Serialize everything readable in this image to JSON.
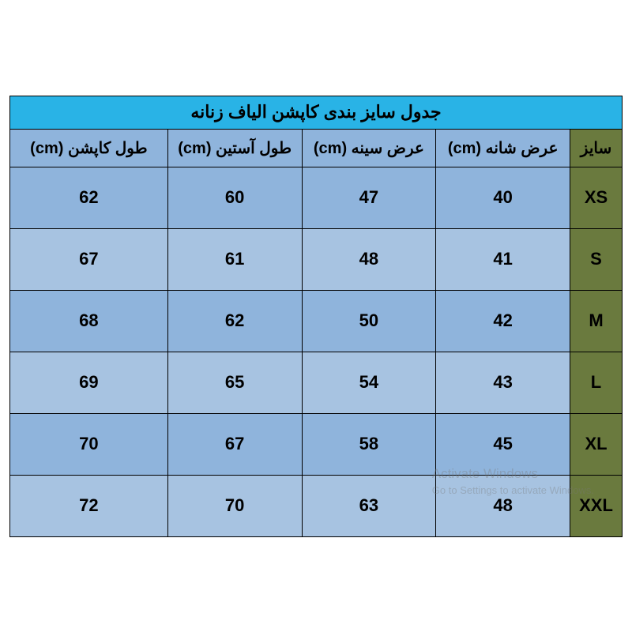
{
  "colors": {
    "title_bg": "#29b3e6",
    "header_bg": "#8fb4dc",
    "size_col_bg": "#6a7a3e",
    "row_even_bg": "#8fb4dc",
    "row_odd_bg": "#a7c3e1",
    "border": "#000000",
    "text": "#000000"
  },
  "table": {
    "title": "جدول سایز بندی کاپشن الیاف زنانه",
    "columns": [
      "سایز",
      "عرض شانه (cm)",
      "عرض سینه (cm)",
      "طول آستین (cm)",
      "طول کاپشن (cm)"
    ],
    "rows": [
      {
        "size": "XS",
        "c1": "40",
        "c2": "47",
        "c3": "60",
        "c4": "62"
      },
      {
        "size": "S",
        "c1": "41",
        "c2": "48",
        "c3": "61",
        "c4": "67"
      },
      {
        "size": "M",
        "c1": "42",
        "c2": "50",
        "c3": "62",
        "c4": "68"
      },
      {
        "size": "L",
        "c1": "43",
        "c2": "54",
        "c3": "65",
        "c4": "69"
      },
      {
        "size": "XL",
        "c1": "45",
        "c2": "58",
        "c3": "67",
        "c4": "70"
      },
      {
        "size": "XXL",
        "c1": "48",
        "c2": "63",
        "c3": "70",
        "c4": "72"
      }
    ]
  },
  "watermark": {
    "line1": "Activate Windows",
    "line2": "Go to Settings to activate Windows."
  }
}
